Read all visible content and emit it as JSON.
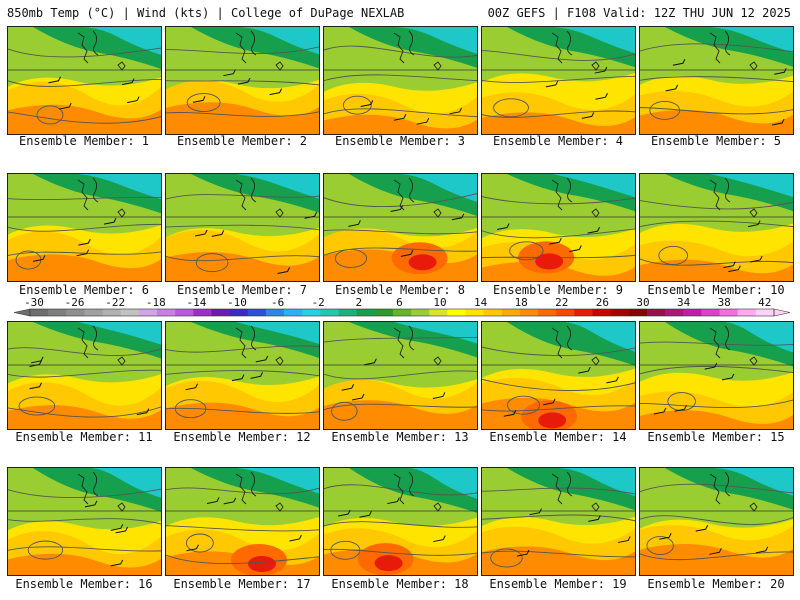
{
  "header": {
    "left": "850mb Temp (°C) | Wind (kts) | College of DuPage NEXLAB",
    "right": "00Z GEFS | F108 Valid: 12Z THU JUN 12 2025"
  },
  "colorbar": {
    "ticks": [
      "-30",
      "-26",
      "-22",
      "-18",
      "-14",
      "-10",
      "-6",
      "-2",
      "2",
      "6",
      "10",
      "14",
      "18",
      "22",
      "26",
      "30",
      "34",
      "38",
      "42"
    ],
    "colors": [
      "#6e6e6e",
      "#7e7e7e",
      "#8f8f8f",
      "#a0a0a0",
      "#b1b1b1",
      "#c2c2c2",
      "#d2a5e6",
      "#c77fe0",
      "#b85bd9",
      "#9b30c8",
      "#6a1bb4",
      "#3c28c8",
      "#2d4fe0",
      "#2f86e8",
      "#27b4ee",
      "#22d3e0",
      "#1ec9b0",
      "#19b47e",
      "#16a04e",
      "#2c9a2e",
      "#64b52a",
      "#9acd32",
      "#d8e425",
      "#ffff00",
      "#ffe400",
      "#ffc800",
      "#ffaa00",
      "#ff8c00",
      "#ff6a00",
      "#ff4500",
      "#e81a0a",
      "#cc0000",
      "#a80000",
      "#8a0000",
      "#9a0e4a",
      "#b0157a",
      "#c81aa8",
      "#e040c8",
      "#f070e0",
      "#ffaaf0",
      "#ffd2f8"
    ]
  },
  "members": [
    {
      "label": "Ensemble Member: 1"
    },
    {
      "label": "Ensemble Member: 2"
    },
    {
      "label": "Ensemble Member: 3"
    },
    {
      "label": "Ensemble Member: 4"
    },
    {
      "label": "Ensemble Member: 5"
    },
    {
      "label": "Ensemble Member: 6"
    },
    {
      "label": "Ensemble Member: 7"
    },
    {
      "label": "Ensemble Member: 8"
    },
    {
      "label": "Ensemble Member: 9"
    },
    {
      "label": "Ensemble Member: 10"
    },
    {
      "label": "Ensemble Member: 11"
    },
    {
      "label": "Ensemble Member: 12"
    },
    {
      "label": "Ensemble Member: 13"
    },
    {
      "label": "Ensemble Member: 14"
    },
    {
      "label": "Ensemble Member: 15"
    },
    {
      "label": "Ensemble Member: 16"
    },
    {
      "label": "Ensemble Member: 17"
    },
    {
      "label": "Ensemble Member: 18"
    },
    {
      "label": "Ensemble Member: 19"
    },
    {
      "label": "Ensemble Member: 20"
    }
  ],
  "colors": {
    "cold": "#1ec8c8",
    "cool": "#16a04e",
    "mild": "#9acd32",
    "warm": "#ffe400",
    "hot": "#ff8c00",
    "hottest": "#e81a0a"
  }
}
